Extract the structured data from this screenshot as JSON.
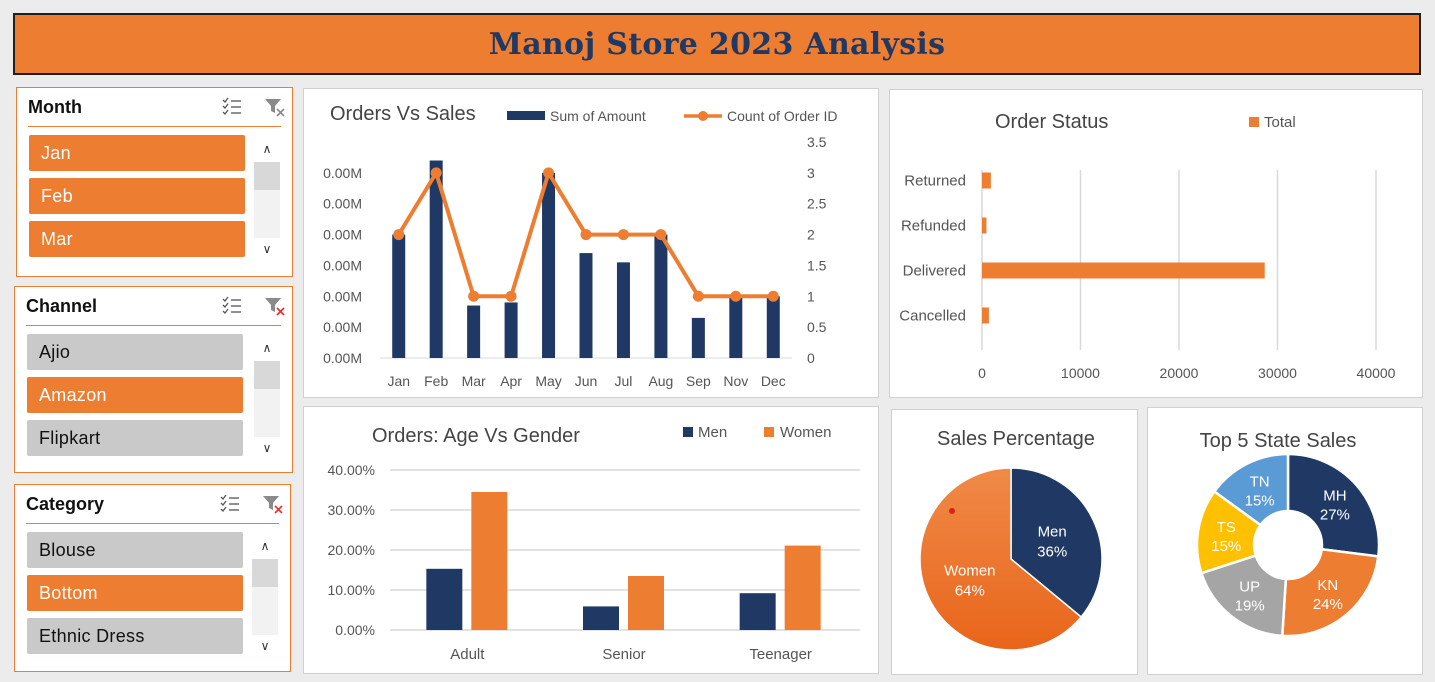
{
  "title": "Manoj Store 2023 Analysis",
  "colors": {
    "orange": "#ed7d31",
    "navy": "#203864",
    "gray": "#a5a5a5",
    "yellow": "#ffc000",
    "blue": "#5b9bd5"
  },
  "icons": {
    "multiselect": "multi-select-icon",
    "clear": "clear-filter-icon"
  },
  "slicers": {
    "month": {
      "title": "Month",
      "items": [
        {
          "label": "Jan",
          "selected": true
        },
        {
          "label": "Feb",
          "selected": true
        },
        {
          "label": "Mar",
          "selected": true
        }
      ]
    },
    "channel": {
      "title": "Channel",
      "items": [
        {
          "label": "Ajio",
          "selected": false
        },
        {
          "label": "Amazon",
          "selected": true
        },
        {
          "label": "Flipkart",
          "selected": false
        }
      ]
    },
    "category": {
      "title": "Category",
      "items": [
        {
          "label": "Blouse",
          "selected": false
        },
        {
          "label": "Bottom",
          "selected": true
        },
        {
          "label": "Ethnic Dress",
          "selected": false
        }
      ]
    }
  },
  "chart_data": [
    {
      "id": "orders_vs_sales",
      "type": "bar",
      "title": "Orders Vs Sales",
      "categories": [
        "Jan",
        "Feb",
        "Mar",
        "Apr",
        "May",
        "Jun",
        "Jul",
        "Aug",
        "Sep",
        "Nov",
        "Dec"
      ],
      "series": [
        {
          "name": "Sum of Amount",
          "kind": "bar",
          "axis": "left",
          "values": [
            2.0,
            3.2,
            0.85,
            0.9,
            3.0,
            1.7,
            1.55,
            2.0,
            0.65,
            1.0,
            1.0
          ]
        },
        {
          "name": "Count of Order ID",
          "kind": "line",
          "axis": "right",
          "values": [
            2,
            3,
            1,
            1,
            3,
            2,
            2,
            2,
            1,
            1,
            1
          ]
        }
      ],
      "y_left_ticks": [
        "0.00M",
        "0.00M",
        "0.00M",
        "0.00M",
        "0.00M",
        "0.00M",
        "0.00M"
      ],
      "y_right_ticks": [
        "0",
        "0.5",
        "1",
        "1.5",
        "2",
        "2.5",
        "3",
        "3.5"
      ],
      "ylim_right": [
        0,
        3.5
      ],
      "legend": "top"
    },
    {
      "id": "order_status",
      "type": "bar",
      "orientation": "horizontal",
      "title": "Order Status",
      "categories": [
        "Returned",
        "Refunded",
        "Delivered",
        "Cancelled"
      ],
      "series": [
        {
          "name": "Total",
          "values": [
            900,
            450,
            28700,
            700
          ]
        }
      ],
      "x_ticks": [
        "0",
        "10000",
        "20000",
        "30000",
        "40000"
      ],
      "xlim": [
        0,
        40000
      ],
      "grid": true,
      "legend": "top"
    },
    {
      "id": "age_vs_gender",
      "type": "bar",
      "title": "Orders: Age Vs Gender",
      "categories": [
        "Adult",
        "Senior",
        "Teenager"
      ],
      "series": [
        {
          "name": "Men",
          "values": [
            15.3,
            5.9,
            9.2
          ]
        },
        {
          "name": "Women",
          "values": [
            34.5,
            13.5,
            21.1
          ]
        }
      ],
      "y_ticks": [
        "0.00%",
        "10.00%",
        "20.00%",
        "30.00%",
        "40.00%"
      ],
      "ylim": [
        0,
        40
      ],
      "grid": true,
      "legend": "top-right"
    },
    {
      "id": "sales_percentage",
      "type": "pie",
      "title": "Sales Percentage",
      "slices": [
        {
          "label": "Men",
          "pct_label": "36%",
          "value": 36
        },
        {
          "label": "Women",
          "pct_label": "64%",
          "value": 64
        }
      ]
    },
    {
      "id": "top5_state",
      "type": "pie",
      "donut": true,
      "title": "Top 5 State Sales",
      "slices": [
        {
          "label": "MH",
          "pct_label": "27%",
          "value": 27
        },
        {
          "label": "KN",
          "pct_label": "24%",
          "value": 24
        },
        {
          "label": "UP",
          "pct_label": "19%",
          "value": 19
        },
        {
          "label": "TS",
          "pct_label": "15%",
          "value": 15
        },
        {
          "label": "TN",
          "pct_label": "15%",
          "value": 15
        }
      ]
    }
  ]
}
